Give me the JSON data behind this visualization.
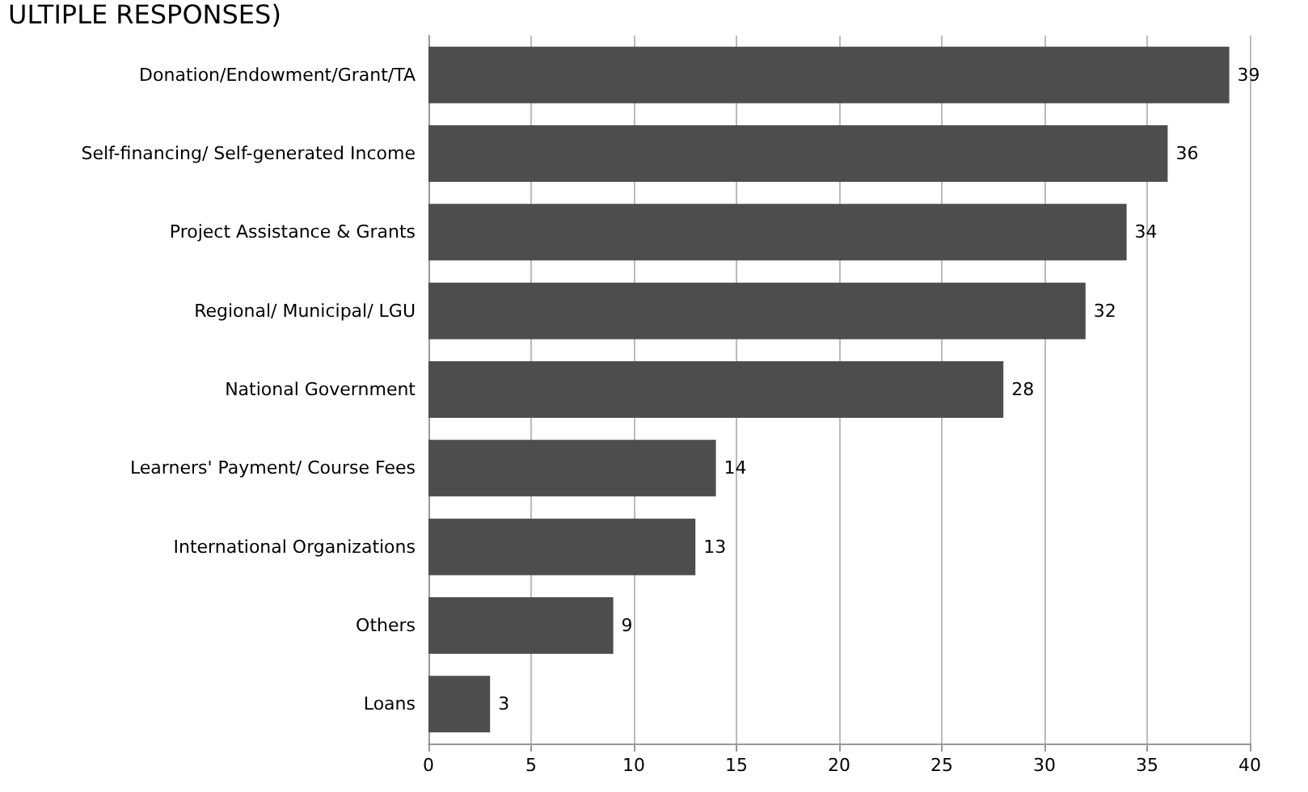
{
  "chart_data": {
    "type": "bar",
    "orientation": "horizontal",
    "title": "ULTIPLE RESPONSES)",
    "categories": [
      "Donation/Endowment/Grant/TA",
      "Self-financing/ Self-generated Income",
      "Project Assistance & Grants",
      "Regional/ Municipal/ LGU",
      "National Government",
      "Learners' Payment/ Course Fees",
      "International Organizations",
      "Others",
      "Loans"
    ],
    "values": [
      39,
      36,
      34,
      32,
      28,
      14,
      13,
      9,
      3
    ],
    "color": "#4d4d4d",
    "xlim": [
      0,
      40
    ],
    "xticks": [
      0,
      5,
      10,
      15,
      20,
      25,
      30,
      35,
      40
    ],
    "grid": "x",
    "data_labels": true
  }
}
